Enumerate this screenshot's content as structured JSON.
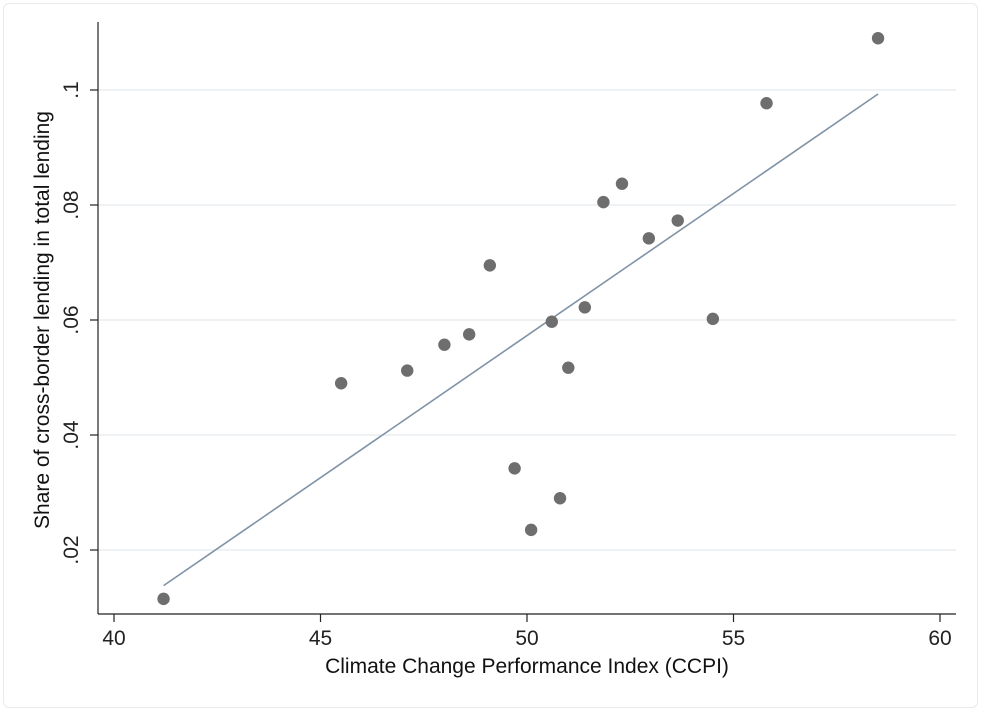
{
  "chart_data": {
    "type": "scatter",
    "title": "",
    "xlabel": "Climate Change Performance Index (CCPI)",
    "ylabel": "Share of cross-border lending in total lending",
    "xlim": [
      40,
      60
    ],
    "ylim": [
      0.0085,
      0.1125
    ],
    "x_ticks": [
      40,
      45,
      50,
      55,
      60
    ],
    "x_tick_labels": [
      "40",
      "45",
      "50",
      "55",
      "60"
    ],
    "y_ticks": [
      0.02,
      0.04,
      0.06,
      0.08,
      0.1
    ],
    "y_tick_labels": [
      ".02",
      ".04",
      ".06",
      ".08",
      ".1"
    ],
    "grid": "horizontal",
    "points": [
      {
        "x": 41.2,
        "y": 0.0115
      },
      {
        "x": 45.5,
        "y": 0.049
      },
      {
        "x": 47.1,
        "y": 0.0512
      },
      {
        "x": 48.0,
        "y": 0.0557
      },
      {
        "x": 48.6,
        "y": 0.0575
      },
      {
        "x": 49.1,
        "y": 0.0695
      },
      {
        "x": 49.7,
        "y": 0.0342
      },
      {
        "x": 50.1,
        "y": 0.0235
      },
      {
        "x": 50.6,
        "y": 0.0597
      },
      {
        "x": 50.8,
        "y": 0.029
      },
      {
        "x": 51.0,
        "y": 0.0517
      },
      {
        "x": 51.4,
        "y": 0.0622
      },
      {
        "x": 51.85,
        "y": 0.0805
      },
      {
        "x": 52.3,
        "y": 0.0837
      },
      {
        "x": 52.95,
        "y": 0.0742
      },
      {
        "x": 53.65,
        "y": 0.0773
      },
      {
        "x": 54.5,
        "y": 0.0602
      },
      {
        "x": 55.8,
        "y": 0.0977
      },
      {
        "x": 58.5,
        "y": 0.109
      }
    ],
    "fit_line": {
      "x": [
        41.2,
        58.5
      ],
      "y": [
        0.0138,
        0.0993
      ]
    },
    "colors": {
      "points": "#6e6e6e",
      "fit_line": "#7f93a6",
      "grid": "#e3ebef",
      "axis": "#222222"
    }
  }
}
